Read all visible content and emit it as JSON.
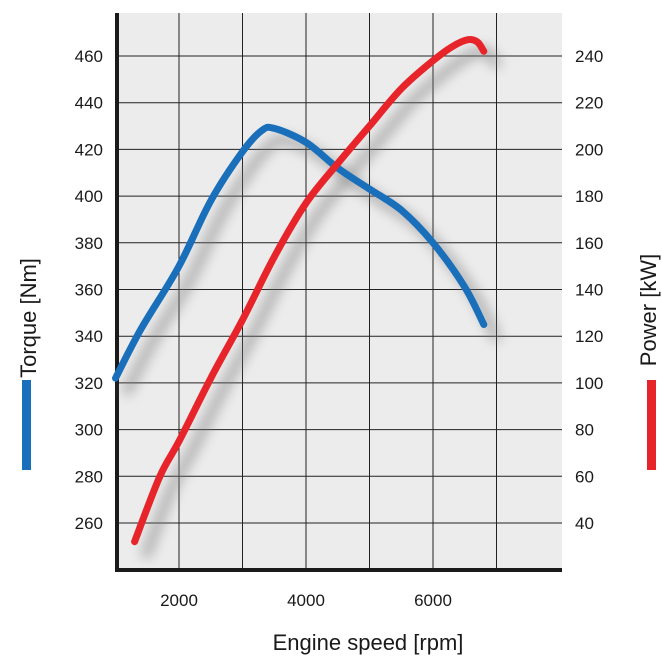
{
  "chart_data": {
    "type": "line",
    "title": "",
    "xlabel": "Engine speed [rpm]",
    "ylabel_left": "Torque [Nm]",
    "ylabel_right": "Power [kW]",
    "xlim": [
      0,
      7400
    ],
    "ylim_left": [
      250,
      470
    ],
    "ylim_right": [
      40,
      250
    ],
    "x_ticks": [
      2000,
      4000,
      6000
    ],
    "y_ticks_left": [
      260,
      280,
      300,
      320,
      340,
      360,
      380,
      400,
      420,
      440,
      460
    ],
    "y_ticks_right": [
      40,
      60,
      80,
      100,
      120,
      140,
      160,
      180,
      200,
      220,
      240
    ],
    "grid": true,
    "series": [
      {
        "name": "Torque [Nm]",
        "axis": "left",
        "color": "#1a6fba",
        "x": [
          1000,
          1400,
          2000,
          2500,
          3000,
          3300,
          3500,
          4000,
          4500,
          5000,
          5500,
          6000,
          6500,
          6800
        ],
        "y": [
          322,
          343,
          370,
          398,
          419,
          428,
          429,
          423,
          412,
          403,
          394,
          380,
          361,
          345
        ]
      },
      {
        "name": "Power [kW]",
        "axis": "right",
        "color": "#e8242b",
        "x": [
          1300,
          1700,
          2000,
          2500,
          3000,
          3500,
          4000,
          4500,
          5000,
          5500,
          6000,
          6300,
          6550,
          6700,
          6800
        ],
        "y": [
          32,
          60,
          75,
          102,
          127,
          154,
          177,
          194,
          210,
          226,
          238,
          244,
          247,
          246,
          242
        ]
      }
    ]
  }
}
